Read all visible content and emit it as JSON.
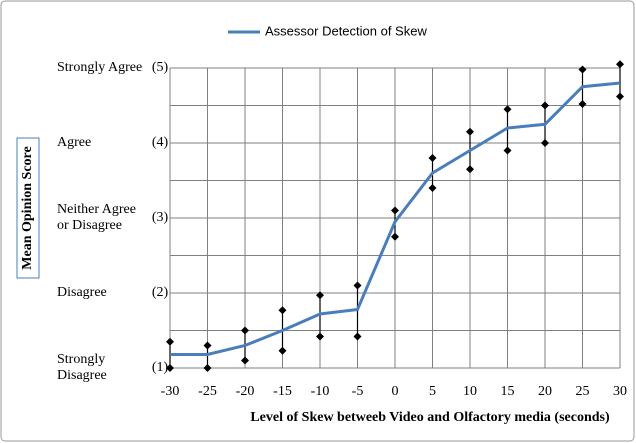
{
  "chart_data": {
    "type": "line",
    "legend": "top",
    "series": [
      {
        "name": "Assessor Detection of Skew",
        "color": "#4a7ebb",
        "values": [
          1.18,
          1.18,
          1.3,
          1.5,
          1.72,
          1.78,
          2.95,
          3.6,
          3.9,
          4.2,
          4.25,
          4.75,
          4.8
        ],
        "upper": [
          1.35,
          1.3,
          1.5,
          1.77,
          1.97,
          2.1,
          3.1,
          3.8,
          4.15,
          4.45,
          4.5,
          4.98,
          5.05
        ],
        "lower": [
          1.0,
          1.0,
          1.1,
          1.23,
          1.42,
          1.42,
          2.75,
          3.4,
          3.65,
          3.9,
          4.0,
          4.52,
          4.62
        ]
      }
    ],
    "x": [
      -30,
      -25,
      -20,
      -15,
      -10,
      -5,
      0,
      5,
      10,
      15,
      20,
      25,
      30
    ],
    "xlim": [
      -30,
      30
    ],
    "xticks": [
      -30,
      -25,
      -20,
      -15,
      -10,
      -5,
      0,
      5,
      10,
      15,
      20,
      25,
      30
    ],
    "ylim": [
      1,
      5
    ],
    "yticks": [
      1,
      1.5,
      2,
      2.5,
      3,
      3.5,
      4,
      4.5,
      5
    ],
    "ytick_labels": [
      {
        "value": 1,
        "code": "(1)",
        "lines": [
          "Strongly",
          "Disagree"
        ]
      },
      {
        "value": 2,
        "code": "(2)",
        "lines": [
          "Disagree"
        ]
      },
      {
        "value": 3,
        "code": "(3)",
        "lines": [
          "Neither Agree",
          "or Disagree"
        ]
      },
      {
        "value": 4,
        "code": "(4)",
        "lines": [
          "Agree"
        ]
      },
      {
        "value": 5,
        "code": "(5)",
        "lines": [
          "Strongly Agree"
        ]
      }
    ],
    "grid": true,
    "xlabel": "Level of Skew betweeb Video and Olfactory media (seconds)",
    "ylabel": "Mean Opinion Score"
  }
}
